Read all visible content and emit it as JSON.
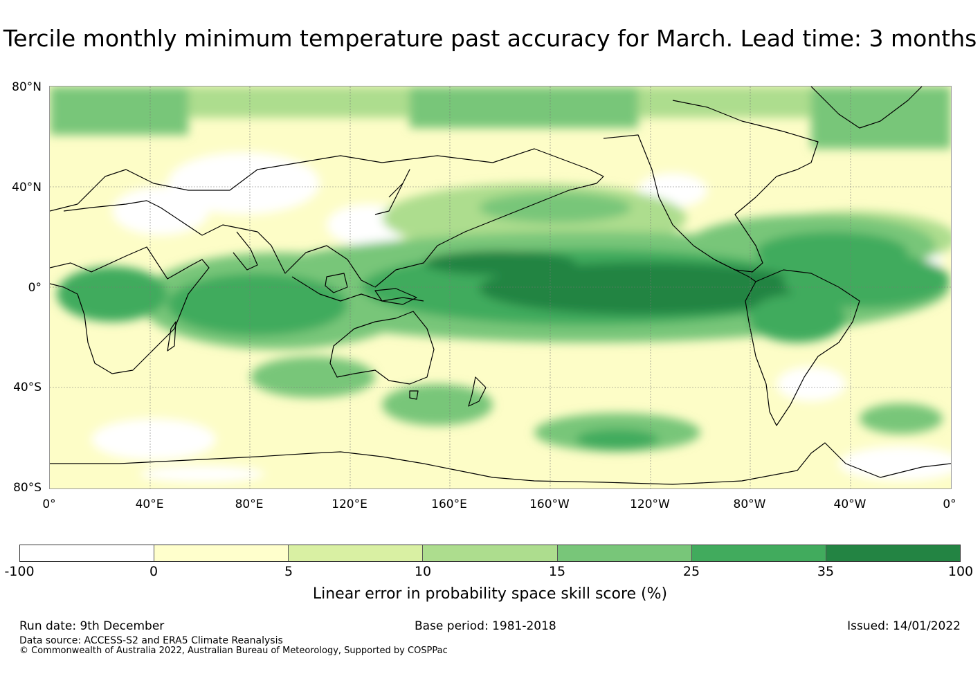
{
  "title": "Tercile monthly minimum temperature past accuracy for March. Lead time: 3 months",
  "map": {
    "lat_labels": [
      "80°N",
      "40°N",
      "0°",
      "40°S",
      "80°S"
    ],
    "lon_labels": [
      "0°",
      "40°E",
      "80°E",
      "120°E",
      "160°E",
      "160°W",
      "120°W",
      "80°W",
      "40°W",
      "0°"
    ],
    "lat_range": [
      -80,
      80
    ],
    "lon_range_east": [
      0,
      360
    ],
    "fill_colors": {
      "neg": "#ffffff",
      "c0": "#ffffcc",
      "c5": "#d9f0a3",
      "c10": "#addd8e",
      "c15": "#78c679",
      "c25": "#41ab5d",
      "c35": "#238443"
    },
    "coast_color": "#000000"
  },
  "colorbar": {
    "segments": [
      {
        "range": "-100 to 0",
        "color": "#ffffff"
      },
      {
        "range": "0 to 5",
        "color": "#ffffcc"
      },
      {
        "range": "5 to 10",
        "color": "#d9f0a3"
      },
      {
        "range": "10 to 15",
        "color": "#addd8e"
      },
      {
        "range": "15 to 25",
        "color": "#78c679"
      },
      {
        "range": "25 to 35",
        "color": "#41ab5d"
      },
      {
        "range": "35 to 100",
        "color": "#238443"
      }
    ],
    "ticks": [
      "-100",
      "0",
      "5",
      "10",
      "15",
      "25",
      "35",
      "100"
    ],
    "label": "Linear error in probability space skill score (%)"
  },
  "footer": {
    "run_date": "Run date: 9th December",
    "base_period": "Base period: 1981-2018",
    "issued": "Issued: 14/01/2022",
    "data_source": "Data source: ACCESS-S2 and ERA5 Climate Reanalysis",
    "copyright": "© Commonwealth of Australia 2022, Australian Bureau of Meteorology, Supported by COSPPac"
  }
}
